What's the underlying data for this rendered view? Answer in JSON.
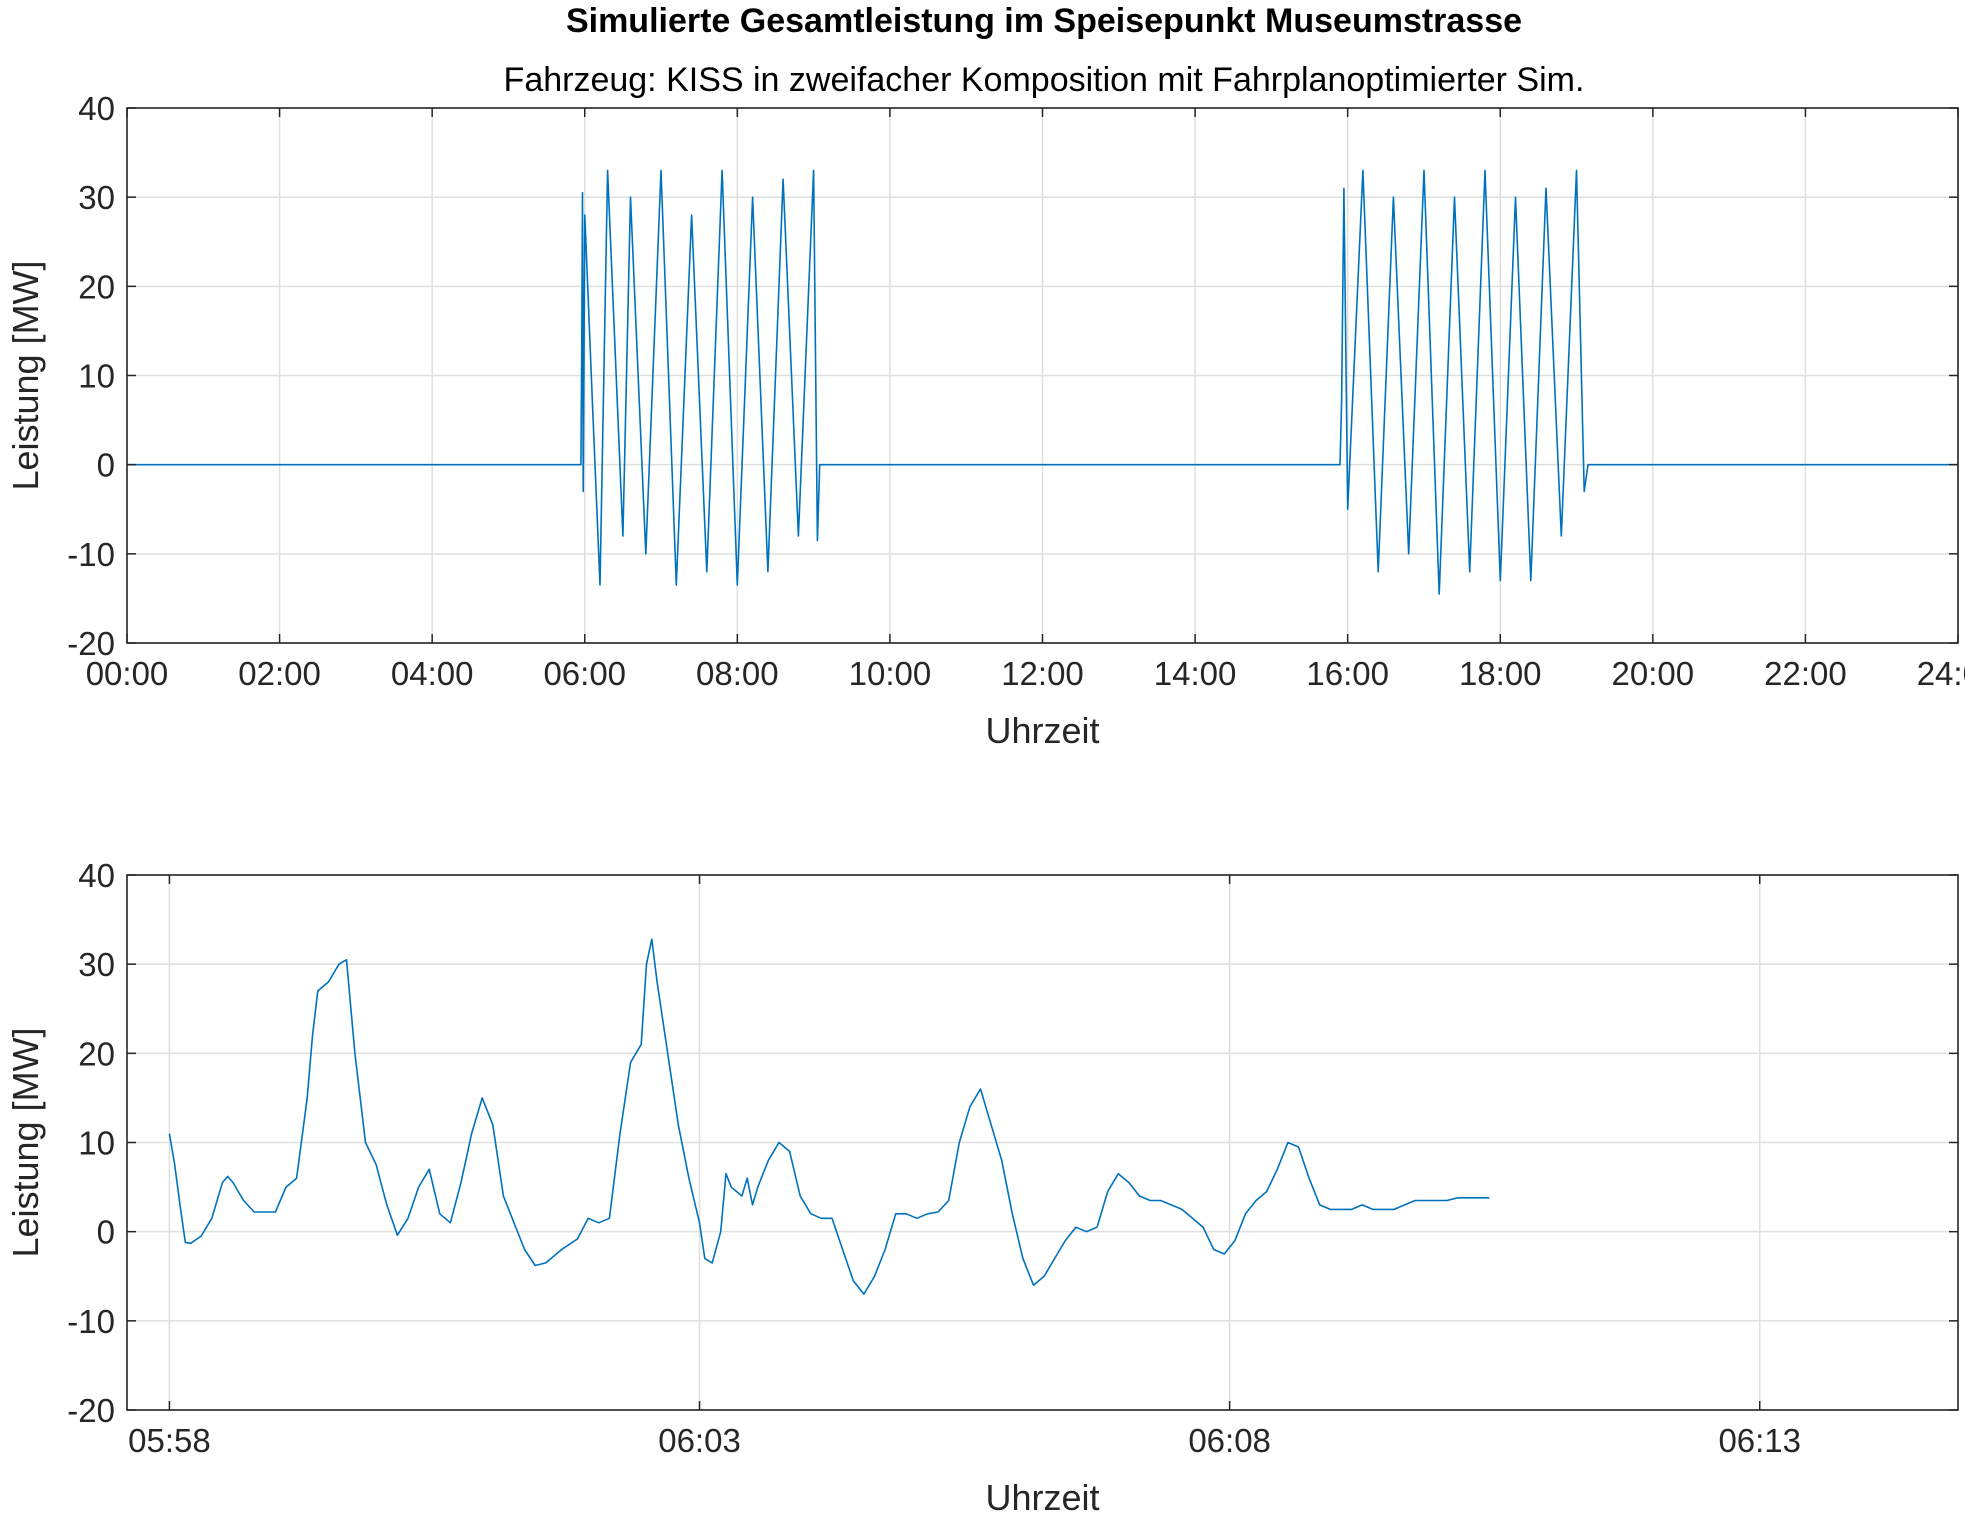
{
  "title": "Simulierte Gesamtleistung im Speisepunkt Museumstrasse",
  "subtitle": "Fahrzeug: KISS in zweifacher Komposition mit Fahrplanoptimierter Sim.",
  "line_color": "#0072BD",
  "chart_data": [
    {
      "type": "line",
      "xlabel": "Uhrzeit",
      "ylabel": "Leistung [MW]",
      "x_unit": "hours",
      "xlim": [
        0,
        24
      ],
      "ylim": [
        -20,
        40
      ],
      "grid": true,
      "xticks": [
        0,
        2,
        4,
        6,
        8,
        10,
        12,
        14,
        16,
        18,
        20,
        22,
        24
      ],
      "xtick_labels": [
        "00:00",
        "02:00",
        "04:00",
        "06:00",
        "08:00",
        "10:00",
        "12:00",
        "14:00",
        "16:00",
        "18:00",
        "20:00",
        "22:00",
        "24:00"
      ],
      "yticks": [
        -20,
        -10,
        0,
        10,
        20,
        30,
        40
      ],
      "ytick_labels": [
        "-20",
        "-10",
        "0",
        "10",
        "20",
        "30",
        "40"
      ],
      "series": [
        {
          "points": [
            [
              0,
              0
            ],
            [
              5.95,
              0
            ],
            [
              5.95,
              0
            ],
            [
              5.96,
              12
            ],
            [
              5.97,
              30.5
            ],
            [
              5.98,
              -3
            ],
            [
              6.0,
              28
            ],
            [
              6.1,
              7
            ],
            [
              6.2,
              -13.5
            ],
            [
              6.3,
              33
            ],
            [
              6.5,
              -8
            ],
            [
              6.6,
              30
            ],
            [
              6.8,
              -10
            ],
            [
              7.0,
              33
            ],
            [
              7.2,
              -13.5
            ],
            [
              7.4,
              28
            ],
            [
              7.6,
              -12
            ],
            [
              7.8,
              33
            ],
            [
              8.0,
              -13.5
            ],
            [
              8.2,
              30
            ],
            [
              8.4,
              -12
            ],
            [
              8.6,
              32
            ],
            [
              8.8,
              -8
            ],
            [
              9.0,
              33
            ],
            [
              9.05,
              -8.5
            ],
            [
              9.08,
              0
            ],
            [
              15.9,
              0
            ],
            [
              15.92,
              7
            ],
            [
              15.95,
              31
            ],
            [
              16.0,
              -5
            ],
            [
              16.2,
              33
            ],
            [
              16.4,
              -12
            ],
            [
              16.6,
              30
            ],
            [
              16.8,
              -10
            ],
            [
              17.0,
              33
            ],
            [
              17.2,
              -14.5
            ],
            [
              17.4,
              30
            ],
            [
              17.6,
              -12
            ],
            [
              17.8,
              33
            ],
            [
              18.0,
              -13
            ],
            [
              18.2,
              30
            ],
            [
              18.4,
              -13
            ],
            [
              18.6,
              31
            ],
            [
              18.8,
              -8
            ],
            [
              19.0,
              33
            ],
            [
              19.1,
              -3
            ],
            [
              19.15,
              0
            ],
            [
              24,
              0
            ]
          ]
        }
      ]
    },
    {
      "type": "line",
      "xlabel": "Uhrzeit",
      "ylabel": "Leistung [MW]",
      "x_unit": "minutes after 05:58",
      "xlim": [
        -0.4,
        16.87
      ],
      "ylim": [
        -20,
        40
      ],
      "grid": true,
      "xticks": [
        0,
        5,
        10,
        15
      ],
      "xtick_labels": [
        "05:58",
        "06:03",
        "06:08",
        "06:13"
      ],
      "yticks": [
        -20,
        -10,
        0,
        10,
        20,
        30,
        40
      ],
      "ytick_labels": [
        "-20",
        "-10",
        "0",
        "10",
        "20",
        "30",
        "40"
      ],
      "series": [
        {
          "points": [
            [
              0.0,
              11.0
            ],
            [
              0.05,
              7.5
            ],
            [
              0.1,
              3.0
            ],
            [
              0.15,
              -1.2
            ],
            [
              0.2,
              -1.3
            ],
            [
              0.3,
              -0.5
            ],
            [
              0.4,
              1.5
            ],
            [
              0.5,
              5.5
            ],
            [
              0.55,
              6.2
            ],
            [
              0.6,
              5.5
            ],
            [
              0.7,
              3.5
            ],
            [
              0.8,
              2.2
            ],
            [
              0.9,
              2.2
            ],
            [
              1.0,
              2.2
            ],
            [
              1.1,
              5.0
            ],
            [
              1.2,
              6.0
            ],
            [
              1.3,
              15.0
            ],
            [
              1.35,
              22.0
            ],
            [
              1.4,
              27.0
            ],
            [
              1.5,
              28.0
            ],
            [
              1.6,
              30.0
            ],
            [
              1.67,
              30.5
            ],
            [
              1.75,
              20.0
            ],
            [
              1.85,
              10.0
            ],
            [
              1.95,
              7.5
            ],
            [
              2.05,
              3.0
            ],
            [
              2.15,
              -0.4
            ],
            [
              2.25,
              1.5
            ],
            [
              2.35,
              5.0
            ],
            [
              2.45,
              7.0
            ],
            [
              2.55,
              2.0
            ],
            [
              2.65,
              1.0
            ],
            [
              2.75,
              5.5
            ],
            [
              2.85,
              11.0
            ],
            [
              2.95,
              15.0
            ],
            [
              3.05,
              12.0
            ],
            [
              3.15,
              4.0
            ],
            [
              3.25,
              1.0
            ],
            [
              3.35,
              -2.0
            ],
            [
              3.45,
              -3.8
            ],
            [
              3.55,
              -3.5
            ],
            [
              3.7,
              -2.0
            ],
            [
              3.85,
              -0.8
            ],
            [
              3.95,
              1.5
            ],
            [
              4.05,
              1.0
            ],
            [
              4.15,
              1.5
            ],
            [
              4.25,
              11.0
            ],
            [
              4.35,
              19.0
            ],
            [
              4.45,
              21.0
            ],
            [
              4.5,
              30.0
            ],
            [
              4.55,
              32.8
            ],
            [
              4.6,
              28.0
            ],
            [
              4.7,
              20.0
            ],
            [
              4.8,
              12.0
            ],
            [
              4.9,
              6.0
            ],
            [
              5.0,
              1.0
            ],
            [
              5.05,
              -3.0
            ],
            [
              5.12,
              -3.5
            ],
            [
              5.2,
              0.0
            ],
            [
              5.25,
              6.5
            ],
            [
              5.3,
              5.0
            ],
            [
              5.4,
              4.0
            ],
            [
              5.45,
              6.0
            ],
            [
              5.5,
              3.0
            ],
            [
              5.55,
              5.0
            ],
            [
              5.65,
              8.0
            ],
            [
              5.75,
              10.0
            ],
            [
              5.85,
              9.0
            ],
            [
              5.95,
              4.0
            ],
            [
              6.05,
              2.0
            ],
            [
              6.15,
              1.5
            ],
            [
              6.25,
              1.5
            ],
            [
              6.35,
              -2.0
            ],
            [
              6.45,
              -5.5
            ],
            [
              6.55,
              -7.0
            ],
            [
              6.65,
              -5.0
            ],
            [
              6.75,
              -2.0
            ],
            [
              6.85,
              2.0
            ],
            [
              6.95,
              2.0
            ],
            [
              7.05,
              1.5
            ],
            [
              7.15,
              2.0
            ],
            [
              7.25,
              2.2
            ],
            [
              7.35,
              3.5
            ],
            [
              7.45,
              10.0
            ],
            [
              7.55,
              14.0
            ],
            [
              7.65,
              16.0
            ],
            [
              7.75,
              12.0
            ],
            [
              7.85,
              8.0
            ],
            [
              7.95,
              2.0
            ],
            [
              8.05,
              -3.0
            ],
            [
              8.15,
              -6.0
            ],
            [
              8.25,
              -5.0
            ],
            [
              8.35,
              -3.0
            ],
            [
              8.45,
              -1.0
            ],
            [
              8.55,
              0.5
            ],
            [
              8.65,
              0.0
            ],
            [
              8.75,
              0.5
            ],
            [
              8.85,
              4.5
            ],
            [
              8.95,
              6.5
            ],
            [
              9.05,
              5.5
            ],
            [
              9.15,
              4.0
            ],
            [
              9.25,
              3.5
            ],
            [
              9.35,
              3.5
            ],
            [
              9.45,
              3.0
            ],
            [
              9.55,
              2.5
            ],
            [
              9.65,
              1.5
            ],
            [
              9.75,
              0.5
            ],
            [
              9.85,
              -2.0
            ],
            [
              9.95,
              -2.5
            ],
            [
              10.05,
              -1.0
            ],
            [
              10.15,
              2.0
            ],
            [
              10.25,
              3.5
            ],
            [
              10.35,
              4.5
            ],
            [
              10.45,
              7.0
            ],
            [
              10.55,
              10.0
            ],
            [
              10.65,
              9.5
            ],
            [
              10.75,
              6.0
            ],
            [
              10.85,
              3.0
            ],
            [
              10.95,
              2.5
            ],
            [
              11.05,
              2.5
            ],
            [
              11.15,
              2.5
            ],
            [
              11.25,
              3.0
            ],
            [
              11.35,
              2.5
            ],
            [
              11.45,
              2.5
            ],
            [
              11.55,
              2.5
            ],
            [
              11.65,
              3.0
            ],
            [
              11.75,
              3.5
            ],
            [
              11.85,
              3.5
            ],
            [
              11.95,
              3.5
            ],
            [
              12.05,
              3.5
            ],
            [
              12.15,
              3.8
            ],
            [
              12.25,
              3.8
            ],
            [
              12.35,
              3.8
            ],
            [
              12.45,
              3.8
            ]
          ]
        }
      ]
    }
  ]
}
